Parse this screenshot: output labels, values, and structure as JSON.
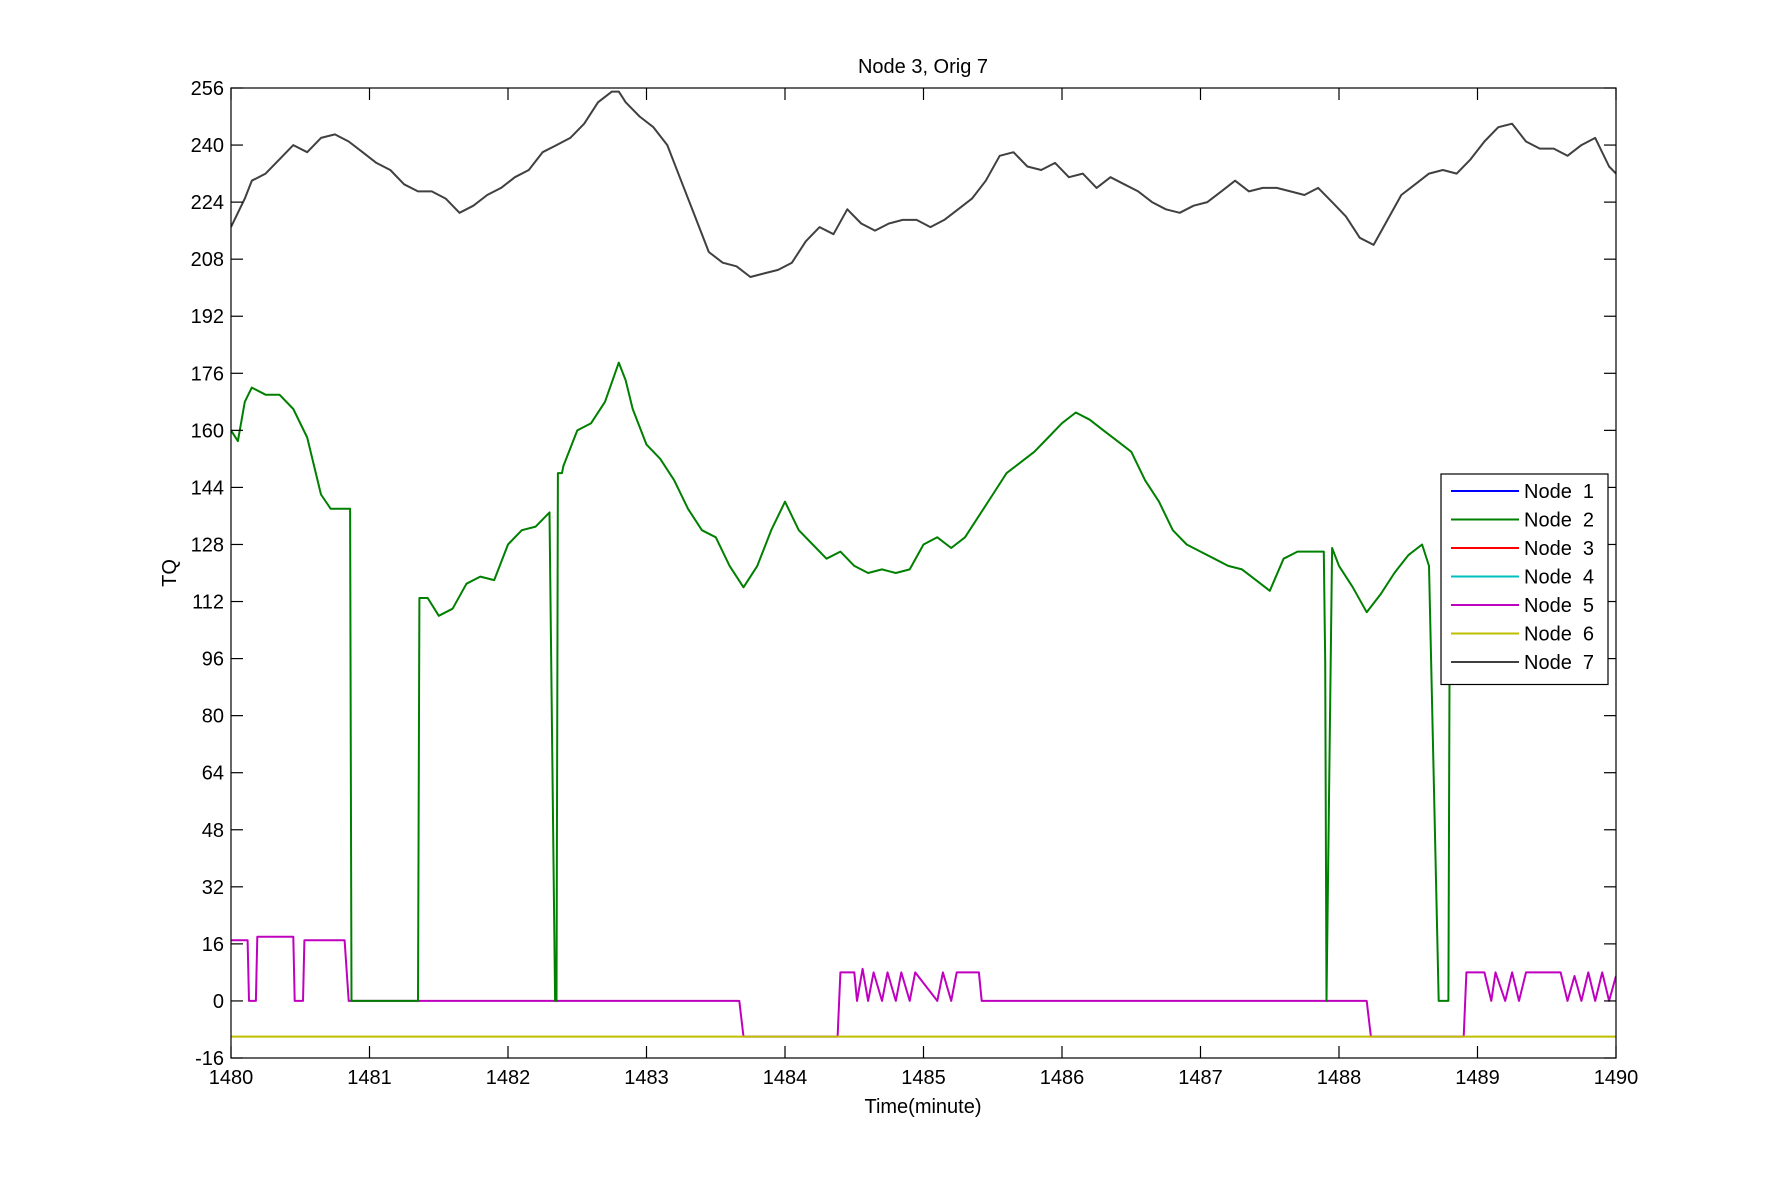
{
  "chart_data": {
    "type": "line",
    "title": "Node 3, Orig 7",
    "xlabel": "Time(minute)",
    "ylabel": "TQ",
    "xlim": [
      1480,
      1490
    ],
    "ylim": [
      -16,
      256
    ],
    "xticks": [
      1480,
      1481,
      1482,
      1483,
      1484,
      1485,
      1486,
      1487,
      1488,
      1489,
      1490
    ],
    "yticks": [
      -16,
      0,
      16,
      32,
      48,
      64,
      80,
      96,
      112,
      128,
      144,
      160,
      176,
      192,
      208,
      224,
      240,
      256
    ],
    "legend_position": "right",
    "grid": false,
    "series": [
      {
        "name": "Node  1",
        "color": "#0000ff",
        "x": [],
        "y": []
      },
      {
        "name": "Node  2",
        "color": "#008000",
        "x": [
          1480.0,
          1480.05,
          1480.1,
          1480.15,
          1480.25,
          1480.35,
          1480.45,
          1480.55,
          1480.65,
          1480.72,
          1480.8,
          1480.86,
          1480.87,
          1480.88,
          1480.9,
          1481.35,
          1481.36,
          1481.42,
          1481.5,
          1481.6,
          1481.7,
          1481.8,
          1481.9,
          1482.0,
          1482.1,
          1482.2,
          1482.3,
          1482.34,
          1482.35,
          1482.36,
          1482.39,
          1482.4,
          1482.5,
          1482.6,
          1482.7,
          1482.8,
          1482.85,
          1482.9,
          1483.0,
          1483.1,
          1483.2,
          1483.3,
          1483.4,
          1483.5,
          1483.6,
          1483.7,
          1483.8,
          1483.9,
          1484.0,
          1484.1,
          1484.2,
          1484.3,
          1484.4,
          1484.5,
          1484.6,
          1484.7,
          1484.8,
          1484.9,
          1485.0,
          1485.1,
          1485.2,
          1485.3,
          1485.4,
          1485.5,
          1485.6,
          1485.7,
          1485.8,
          1485.9,
          1486.0,
          1486.1,
          1486.2,
          1486.3,
          1486.4,
          1486.5,
          1486.6,
          1486.7,
          1486.8,
          1486.9,
          1487.0,
          1487.1,
          1487.2,
          1487.3,
          1487.4,
          1487.5,
          1487.6,
          1487.7,
          1487.8,
          1487.85,
          1487.89,
          1487.9,
          1487.91,
          1487.95,
          1488.0,
          1488.1,
          1488.2,
          1488.3,
          1488.4,
          1488.5,
          1488.6,
          1488.65,
          1488.72,
          1488.73,
          1488.78,
          1488.79,
          1488.8,
          1488.85
        ],
        "y": [
          160,
          157,
          168,
          172,
          170,
          170,
          166,
          158,
          142,
          138,
          138,
          138,
          0,
          0,
          0,
          0,
          113,
          113,
          108,
          110,
          117,
          119,
          118,
          128,
          132,
          133,
          137,
          0,
          0,
          148,
          148,
          150,
          160,
          162,
          168,
          179,
          174,
          166,
          156,
          152,
          146,
          138,
          132,
          130,
          122,
          116,
          122,
          132,
          140,
          132,
          128,
          124,
          126,
          122,
          120,
          121,
          120,
          121,
          128,
          130,
          127,
          130,
          136,
          142,
          148,
          151,
          154,
          158,
          162,
          165,
          163,
          160,
          157,
          154,
          146,
          140,
          132,
          128,
          126,
          124,
          122,
          121,
          118,
          115,
          124,
          126,
          126,
          126,
          126,
          95,
          0,
          127,
          122,
          116,
          109,
          114,
          120,
          125,
          128,
          122,
          0,
          0,
          0,
          0,
          115,
          118
        ]
      },
      {
        "name": "Node  3",
        "color": "#ff0000",
        "x": [],
        "y": []
      },
      {
        "name": "Node  4",
        "color": "#00bfbf",
        "x": [],
        "y": []
      },
      {
        "name": "Node  5",
        "color": "#bf00bf",
        "x": [
          1480.0,
          1480.12,
          1480.13,
          1480.18,
          1480.19,
          1480.45,
          1480.46,
          1480.52,
          1480.53,
          1480.82,
          1480.85,
          1483.67,
          1483.7,
          1484.38,
          1484.4,
          1484.5,
          1484.52,
          1484.56,
          1484.6,
          1484.64,
          1484.7,
          1484.74,
          1484.8,
          1484.84,
          1484.9,
          1484.94,
          1485.1,
          1485.14,
          1485.2,
          1485.24,
          1485.25,
          1485.4,
          1485.42,
          1488.2,
          1488.23,
          1488.9,
          1488.92,
          1489.05,
          1489.1,
          1489.13,
          1489.2,
          1489.25,
          1489.3,
          1489.35,
          1489.6,
          1489.65,
          1489.7,
          1489.75,
          1489.8,
          1489.85,
          1489.9,
          1489.95,
          1490.0
        ],
        "y": [
          17,
          17,
          0,
          0,
          18,
          18,
          0,
          0,
          17,
          17,
          0,
          0,
          -10,
          -10,
          8,
          8,
          0,
          9,
          0,
          8,
          0,
          8,
          0,
          8,
          0,
          8,
          0,
          8,
          0,
          8,
          8,
          8,
          0,
          0,
          -10,
          -10,
          8,
          8,
          0,
          8,
          0,
          8,
          0,
          8,
          8,
          0,
          7,
          0,
          8,
          0,
          8,
          0,
          7
        ]
      },
      {
        "name": "Node  6",
        "color": "#bfbf00",
        "x": [
          1480,
          1490
        ],
        "y": [
          -10,
          -10
        ]
      },
      {
        "name": "Node  7",
        "color": "#404040",
        "x": [
          1480.0,
          1480.1,
          1480.15,
          1480.25,
          1480.35,
          1480.45,
          1480.55,
          1480.65,
          1480.75,
          1480.85,
          1480.95,
          1481.05,
          1481.15,
          1481.25,
          1481.35,
          1481.45,
          1481.55,
          1481.65,
          1481.75,
          1481.85,
          1481.95,
          1482.05,
          1482.15,
          1482.25,
          1482.35,
          1482.45,
          1482.55,
          1482.65,
          1482.75,
          1482.8,
          1482.85,
          1482.95,
          1483.05,
          1483.15,
          1483.25,
          1483.35,
          1483.45,
          1483.55,
          1483.65,
          1483.75,
          1483.85,
          1483.95,
          1484.05,
          1484.15,
          1484.25,
          1484.35,
          1484.45,
          1484.55,
          1484.65,
          1484.75,
          1484.85,
          1484.95,
          1485.05,
          1485.15,
          1485.25,
          1485.35,
          1485.45,
          1485.55,
          1485.65,
          1485.75,
          1485.85,
          1485.95,
          1486.05,
          1486.15,
          1486.25,
          1486.35,
          1486.45,
          1486.55,
          1486.65,
          1486.75,
          1486.85,
          1486.95,
          1487.05,
          1487.15,
          1487.25,
          1487.35,
          1487.45,
          1487.55,
          1487.65,
          1487.75,
          1487.85,
          1487.95,
          1488.05,
          1488.15,
          1488.25,
          1488.35,
          1488.45,
          1488.55,
          1488.65,
          1488.75,
          1488.85,
          1488.95,
          1489.05,
          1489.15,
          1489.25,
          1489.35,
          1489.45,
          1489.55,
          1489.65,
          1489.75,
          1489.85,
          1489.95,
          1490.0
        ],
        "y": [
          217,
          225,
          230,
          232,
          236,
          240,
          238,
          242,
          243,
          241,
          238,
          235,
          233,
          229,
          227,
          227,
          225,
          221,
          223,
          226,
          228,
          231,
          233,
          238,
          240,
          242,
          246,
          252,
          255,
          255,
          252,
          248,
          245,
          240,
          230,
          220,
          210,
          207,
          206,
          203,
          204,
          205,
          207,
          213,
          217,
          215,
          222,
          218,
          216,
          218,
          219,
          219,
          217,
          219,
          222,
          225,
          230,
          237,
          238,
          234,
          233,
          235,
          231,
          232,
          228,
          231,
          229,
          227,
          224,
          222,
          221,
          223,
          224,
          227,
          230,
          227,
          228,
          228,
          227,
          226,
          228,
          224,
          220,
          214,
          212,
          219,
          226,
          229,
          232,
          233,
          232,
          236,
          241,
          245,
          246,
          241,
          239,
          239,
          237,
          240,
          242,
          234,
          232
        ]
      }
    ]
  }
}
